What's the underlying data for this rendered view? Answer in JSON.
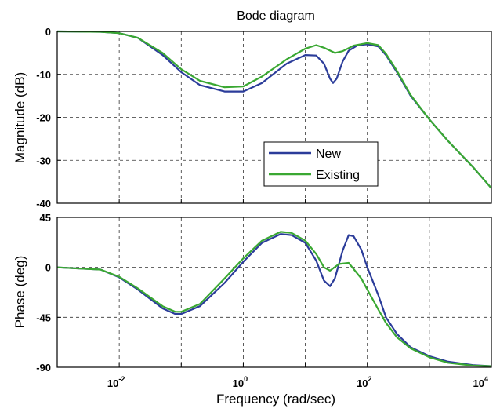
{
  "chart_data": [
    {
      "type": "line",
      "title": "Bode diagram",
      "xlabel": "",
      "ylabel": "Magnitude (dB)",
      "xscale": "log",
      "xlim": [
        0.001,
        10000
      ],
      "ylim": [
        -40,
        0
      ],
      "yticks": [
        0,
        -10,
        -20,
        -30,
        -40
      ],
      "grid": true,
      "legend": "center-right",
      "series": [
        {
          "name": "New",
          "color": "#2b3c9a",
          "points": [
            [
              0.001,
              0
            ],
            [
              0.005,
              -0.1
            ],
            [
              0.01,
              -0.4
            ],
            [
              0.02,
              -1.5
            ],
            [
              0.05,
              -5.5
            ],
            [
              0.1,
              -9.5
            ],
            [
              0.2,
              -12.5
            ],
            [
              0.5,
              -14
            ],
            [
              1,
              -14
            ],
            [
              2,
              -12
            ],
            [
              5,
              -7.5
            ],
            [
              10,
              -5.5
            ],
            [
              15,
              -5.6
            ],
            [
              20,
              -7.5
            ],
            [
              25,
              -11
            ],
            [
              28,
              -12
            ],
            [
              32,
              -11
            ],
            [
              40,
              -7
            ],
            [
              50,
              -4.5
            ],
            [
              70,
              -3.2
            ],
            [
              100,
              -3
            ],
            [
              150,
              -3.5
            ],
            [
              200,
              -5.5
            ],
            [
              300,
              -9.5
            ],
            [
              500,
              -15
            ],
            [
              1000,
              -20.5
            ],
            [
              2000,
              -25.5
            ],
            [
              5000,
              -31.5
            ],
            [
              10000,
              -36.5
            ]
          ]
        },
        {
          "name": "Existing",
          "color": "#3aa832",
          "points": [
            [
              0.001,
              0
            ],
            [
              0.005,
              -0.1
            ],
            [
              0.01,
              -0.4
            ],
            [
              0.02,
              -1.5
            ],
            [
              0.05,
              -5
            ],
            [
              0.1,
              -8.8
            ],
            [
              0.2,
              -11.5
            ],
            [
              0.5,
              -13
            ],
            [
              1,
              -12.8
            ],
            [
              2,
              -10.5
            ],
            [
              5,
              -6.5
            ],
            [
              10,
              -4
            ],
            [
              15,
              -3.2
            ],
            [
              20,
              -3.8
            ],
            [
              30,
              -5
            ],
            [
              40,
              -4.6
            ],
            [
              60,
              -3.3
            ],
            [
              100,
              -2.7
            ],
            [
              150,
              -3.2
            ],
            [
              200,
              -5.2
            ],
            [
              300,
              -9.2
            ],
            [
              500,
              -14.8
            ],
            [
              1000,
              -20.5
            ],
            [
              2000,
              -25.5
            ],
            [
              5000,
              -31.5
            ],
            [
              10000,
              -36.5
            ]
          ]
        }
      ]
    },
    {
      "type": "line",
      "title": "",
      "xlabel": "Frequency (rad/sec)",
      "ylabel": "Phase (deg)",
      "xscale": "log",
      "xlim": [
        0.001,
        10000
      ],
      "ylim": [
        -90,
        45
      ],
      "yticks": [
        45,
        0,
        -45,
        -90
      ],
      "xticks": [
        {
          "base": "10",
          "exp": "-2",
          "value": 0.01
        },
        {
          "base": "10",
          "exp": "0",
          "value": 1
        },
        {
          "base": "10",
          "exp": "2",
          "value": 100
        },
        {
          "base": "10",
          "exp": "4",
          "value": 10000
        }
      ],
      "grid": true,
      "series": [
        {
          "name": "New",
          "color": "#2b3c9a",
          "points": [
            [
              0.001,
              0
            ],
            [
              0.005,
              -2
            ],
            [
              0.01,
              -9
            ],
            [
              0.02,
              -20
            ],
            [
              0.05,
              -37
            ],
            [
              0.08,
              -42
            ],
            [
              0.1,
              -42
            ],
            [
              0.2,
              -35
            ],
            [
              0.5,
              -14
            ],
            [
              1,
              5
            ],
            [
              2,
              22
            ],
            [
              4,
              30
            ],
            [
              6,
              29
            ],
            [
              10,
              22
            ],
            [
              15,
              6
            ],
            [
              20,
              -12
            ],
            [
              25,
              -17
            ],
            [
              30,
              -10
            ],
            [
              40,
              15
            ],
            [
              50,
              29
            ],
            [
              60,
              28
            ],
            [
              80,
              16
            ],
            [
              100,
              0
            ],
            [
              150,
              -25
            ],
            [
              200,
              -45
            ],
            [
              300,
              -60
            ],
            [
              500,
              -72
            ],
            [
              1000,
              -80
            ],
            [
              2000,
              -85
            ],
            [
              5000,
              -88
            ],
            [
              10000,
              -89
            ]
          ]
        },
        {
          "name": "Existing",
          "color": "#3aa832",
          "points": [
            [
              0.001,
              0
            ],
            [
              0.005,
              -2
            ],
            [
              0.01,
              -8.5
            ],
            [
              0.02,
              -19
            ],
            [
              0.05,
              -35
            ],
            [
              0.08,
              -40
            ],
            [
              0.1,
              -40
            ],
            [
              0.2,
              -33
            ],
            [
              0.5,
              -10
            ],
            [
              1,
              8
            ],
            [
              2,
              24
            ],
            [
              4,
              32
            ],
            [
              6,
              31
            ],
            [
              10,
              24
            ],
            [
              15,
              12
            ],
            [
              20,
              0
            ],
            [
              25,
              -3
            ],
            [
              35,
              3
            ],
            [
              50,
              4
            ],
            [
              80,
              -10
            ],
            [
              100,
              -20
            ],
            [
              150,
              -38
            ],
            [
              200,
              -50
            ],
            [
              300,
              -63
            ],
            [
              500,
              -73
            ],
            [
              1000,
              -81
            ],
            [
              2000,
              -86
            ],
            [
              5000,
              -88.5
            ],
            [
              10000,
              -89
            ]
          ]
        }
      ]
    }
  ]
}
